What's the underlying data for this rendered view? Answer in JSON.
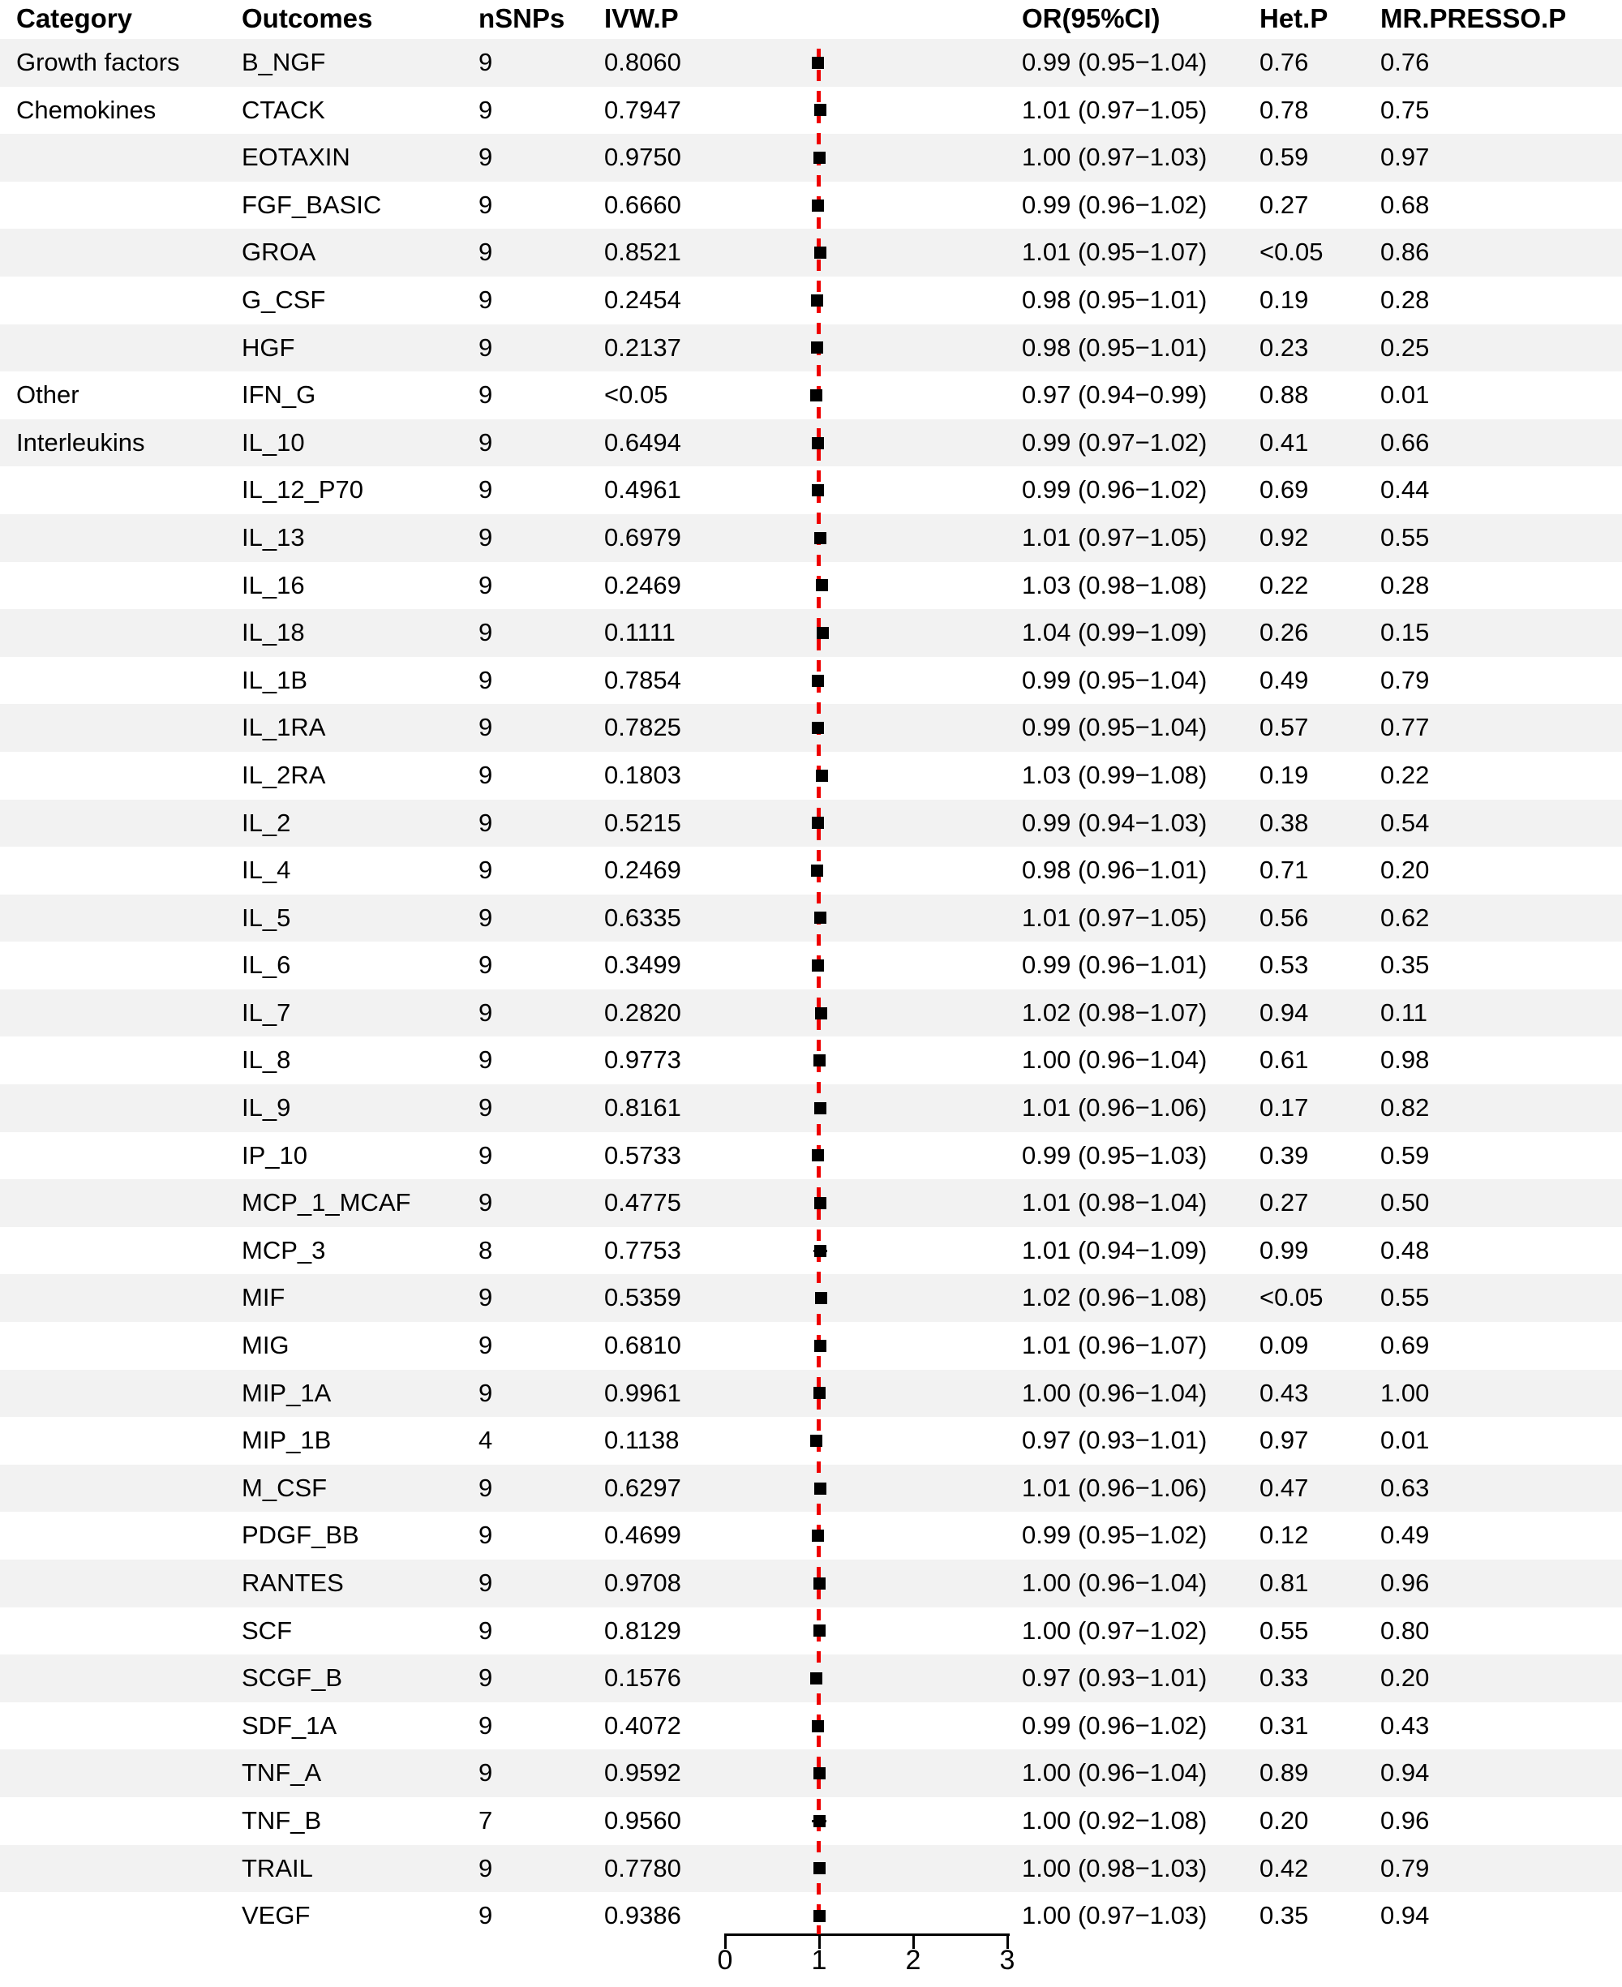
{
  "header": {
    "category": "Category",
    "outcomes": "Outcomes",
    "nsnps": "nSNPs",
    "ivw_p": "IVW.P",
    "or_ci": "OR(95%CI)",
    "het_p": "Het.P",
    "presso_p": "MR.PRESSO.P"
  },
  "axis": {
    "ticks": [
      "0",
      "1",
      "2",
      "3"
    ],
    "min": 0,
    "max": 3,
    "reference_value": 1
  },
  "colors": {
    "stripe": "#f2f2f2",
    "reference_line": "#ee0000",
    "marker": "#000000",
    "text": "#000000"
  },
  "rows": [
    {
      "category": "Growth factors",
      "outcome": "B_NGF",
      "nsnps": "9",
      "ivw_p": "0.8060",
      "or": 0.99,
      "lo": 0.95,
      "hi": 1.04,
      "or_ci": "0.99 (0.95−1.04)",
      "het_p": "0.76",
      "presso_p": "0.76"
    },
    {
      "category": "Chemokines",
      "outcome": "CTACK",
      "nsnps": "9",
      "ivw_p": "0.7947",
      "or": 1.01,
      "lo": 0.97,
      "hi": 1.05,
      "or_ci": "1.01 (0.97−1.05)",
      "het_p": "0.78",
      "presso_p": "0.75"
    },
    {
      "category": "",
      "outcome": "EOTAXIN",
      "nsnps": "9",
      "ivw_p": "0.9750",
      "or": 1.0,
      "lo": 0.97,
      "hi": 1.03,
      "or_ci": "1.00 (0.97−1.03)",
      "het_p": "0.59",
      "presso_p": "0.97"
    },
    {
      "category": "",
      "outcome": "FGF_BASIC",
      "nsnps": "9",
      "ivw_p": "0.6660",
      "or": 0.99,
      "lo": 0.96,
      "hi": 1.02,
      "or_ci": "0.99 (0.96−1.02)",
      "het_p": "0.27",
      "presso_p": "0.68"
    },
    {
      "category": "",
      "outcome": "GROA",
      "nsnps": "9",
      "ivw_p": "0.8521",
      "or": 1.01,
      "lo": 0.95,
      "hi": 1.07,
      "or_ci": "1.01 (0.95−1.07)",
      "het_p": "<0.05",
      "presso_p": "0.86"
    },
    {
      "category": "",
      "outcome": "G_CSF",
      "nsnps": "9",
      "ivw_p": "0.2454",
      "or": 0.98,
      "lo": 0.95,
      "hi": 1.01,
      "or_ci": "0.98 (0.95−1.01)",
      "het_p": "0.19",
      "presso_p": "0.28"
    },
    {
      "category": "",
      "outcome": "HGF",
      "nsnps": "9",
      "ivw_p": "0.2137",
      "or": 0.98,
      "lo": 0.95,
      "hi": 1.01,
      "or_ci": "0.98 (0.95−1.01)",
      "het_p": "0.23",
      "presso_p": "0.25"
    },
    {
      "category": "Other",
      "outcome": "IFN_G",
      "nsnps": "9",
      "ivw_p": "<0.05",
      "or": 0.97,
      "lo": 0.94,
      "hi": 0.99,
      "or_ci": "0.97 (0.94−0.99)",
      "het_p": "0.88",
      "presso_p": "0.01"
    },
    {
      "category": "Interleukins",
      "outcome": "IL_10",
      "nsnps": "9",
      "ivw_p": "0.6494",
      "or": 0.99,
      "lo": 0.97,
      "hi": 1.02,
      "or_ci": "0.99 (0.97−1.02)",
      "het_p": "0.41",
      "presso_p": "0.66"
    },
    {
      "category": "",
      "outcome": "IL_12_P70",
      "nsnps": "9",
      "ivw_p": "0.4961",
      "or": 0.99,
      "lo": 0.96,
      "hi": 1.02,
      "or_ci": "0.99 (0.96−1.02)",
      "het_p": "0.69",
      "presso_p": "0.44"
    },
    {
      "category": "",
      "outcome": "IL_13",
      "nsnps": "9",
      "ivw_p": "0.6979",
      "or": 1.01,
      "lo": 0.97,
      "hi": 1.05,
      "or_ci": "1.01 (0.97−1.05)",
      "het_p": "0.92",
      "presso_p": "0.55"
    },
    {
      "category": "",
      "outcome": "IL_16",
      "nsnps": "9",
      "ivw_p": "0.2469",
      "or": 1.03,
      "lo": 0.98,
      "hi": 1.08,
      "or_ci": "1.03 (0.98−1.08)",
      "het_p": "0.22",
      "presso_p": "0.28"
    },
    {
      "category": "",
      "outcome": "IL_18",
      "nsnps": "9",
      "ivw_p": "0.1111",
      "or": 1.04,
      "lo": 0.99,
      "hi": 1.09,
      "or_ci": "1.04 (0.99−1.09)",
      "het_p": "0.26",
      "presso_p": "0.15"
    },
    {
      "category": "",
      "outcome": "IL_1B",
      "nsnps": "9",
      "ivw_p": "0.7854",
      "or": 0.99,
      "lo": 0.95,
      "hi": 1.04,
      "or_ci": "0.99 (0.95−1.04)",
      "het_p": "0.49",
      "presso_p": "0.79"
    },
    {
      "category": "",
      "outcome": "IL_1RA",
      "nsnps": "9",
      "ivw_p": "0.7825",
      "or": 0.99,
      "lo": 0.95,
      "hi": 1.04,
      "or_ci": "0.99 (0.95−1.04)",
      "het_p": "0.57",
      "presso_p": "0.77"
    },
    {
      "category": "",
      "outcome": "IL_2RA",
      "nsnps": "9",
      "ivw_p": "0.1803",
      "or": 1.03,
      "lo": 0.99,
      "hi": 1.08,
      "or_ci": "1.03 (0.99−1.08)",
      "het_p": "0.19",
      "presso_p": "0.22"
    },
    {
      "category": "",
      "outcome": "IL_2",
      "nsnps": "9",
      "ivw_p": "0.5215",
      "or": 0.99,
      "lo": 0.94,
      "hi": 1.03,
      "or_ci": "0.99 (0.94−1.03)",
      "het_p": "0.38",
      "presso_p": "0.54"
    },
    {
      "category": "",
      "outcome": "IL_4",
      "nsnps": "9",
      "ivw_p": "0.2469",
      "or": 0.98,
      "lo": 0.96,
      "hi": 1.01,
      "or_ci": "0.98 (0.96−1.01)",
      "het_p": "0.71",
      "presso_p": "0.20"
    },
    {
      "category": "",
      "outcome": "IL_5",
      "nsnps": "9",
      "ivw_p": "0.6335",
      "or": 1.01,
      "lo": 0.97,
      "hi": 1.05,
      "or_ci": "1.01 (0.97−1.05)",
      "het_p": "0.56",
      "presso_p": "0.62"
    },
    {
      "category": "",
      "outcome": "IL_6",
      "nsnps": "9",
      "ivw_p": "0.3499",
      "or": 0.99,
      "lo": 0.96,
      "hi": 1.01,
      "or_ci": "0.99 (0.96−1.01)",
      "het_p": "0.53",
      "presso_p": "0.35"
    },
    {
      "category": "",
      "outcome": "IL_7",
      "nsnps": "9",
      "ivw_p": "0.2820",
      "or": 1.02,
      "lo": 0.98,
      "hi": 1.07,
      "or_ci": "1.02 (0.98−1.07)",
      "het_p": "0.94",
      "presso_p": "0.11"
    },
    {
      "category": "",
      "outcome": "IL_8",
      "nsnps": "9",
      "ivw_p": "0.9773",
      "or": 1.0,
      "lo": 0.96,
      "hi": 1.04,
      "or_ci": "1.00 (0.96−1.04)",
      "het_p": "0.61",
      "presso_p": "0.98"
    },
    {
      "category": "",
      "outcome": "IL_9",
      "nsnps": "9",
      "ivw_p": "0.8161",
      "or": 1.01,
      "lo": 0.96,
      "hi": 1.06,
      "or_ci": "1.01 (0.96−1.06)",
      "het_p": "0.17",
      "presso_p": "0.82"
    },
    {
      "category": "",
      "outcome": "IP_10",
      "nsnps": "9",
      "ivw_p": "0.5733",
      "or": 0.99,
      "lo": 0.95,
      "hi": 1.03,
      "or_ci": "0.99 (0.95−1.03)",
      "het_p": "0.39",
      "presso_p": "0.59"
    },
    {
      "category": "",
      "outcome": "MCP_1_MCAF",
      "nsnps": "9",
      "ivw_p": "0.4775",
      "or": 1.01,
      "lo": 0.98,
      "hi": 1.04,
      "or_ci": "1.01 (0.98−1.04)",
      "het_p": "0.27",
      "presso_p": "0.50"
    },
    {
      "category": "",
      "outcome": "MCP_3",
      "nsnps": "8",
      "ivw_p": "0.7753",
      "or": 1.01,
      "lo": 0.94,
      "hi": 1.09,
      "or_ci": "1.01 (0.94−1.09)",
      "het_p": "0.99",
      "presso_p": "0.48"
    },
    {
      "category": "",
      "outcome": "MIF",
      "nsnps": "9",
      "ivw_p": "0.5359",
      "or": 1.02,
      "lo": 0.96,
      "hi": 1.08,
      "or_ci": "1.02 (0.96−1.08)",
      "het_p": "<0.05",
      "presso_p": "0.55"
    },
    {
      "category": "",
      "outcome": "MIG",
      "nsnps": "9",
      "ivw_p": "0.6810",
      "or": 1.01,
      "lo": 0.96,
      "hi": 1.07,
      "or_ci": "1.01 (0.96−1.07)",
      "het_p": "0.09",
      "presso_p": "0.69"
    },
    {
      "category": "",
      "outcome": "MIP_1A",
      "nsnps": "9",
      "ivw_p": "0.9961",
      "or": 1.0,
      "lo": 0.96,
      "hi": 1.04,
      "or_ci": "1.00 (0.96−1.04)",
      "het_p": "0.43",
      "presso_p": "1.00"
    },
    {
      "category": "",
      "outcome": "MIP_1B",
      "nsnps": "4",
      "ivw_p": "0.1138",
      "or": 0.97,
      "lo": 0.93,
      "hi": 1.01,
      "or_ci": "0.97 (0.93−1.01)",
      "het_p": "0.97",
      "presso_p": "0.01"
    },
    {
      "category": "",
      "outcome": "M_CSF",
      "nsnps": "9",
      "ivw_p": "0.6297",
      "or": 1.01,
      "lo": 0.96,
      "hi": 1.06,
      "or_ci": "1.01 (0.96−1.06)",
      "het_p": "0.47",
      "presso_p": "0.63"
    },
    {
      "category": "",
      "outcome": "PDGF_BB",
      "nsnps": "9",
      "ivw_p": "0.4699",
      "or": 0.99,
      "lo": 0.95,
      "hi": 1.02,
      "or_ci": "0.99 (0.95−1.02)",
      "het_p": "0.12",
      "presso_p": "0.49"
    },
    {
      "category": "",
      "outcome": "RANTES",
      "nsnps": "9",
      "ivw_p": "0.9708",
      "or": 1.0,
      "lo": 0.96,
      "hi": 1.04,
      "or_ci": "1.00 (0.96−1.04)",
      "het_p": "0.81",
      "presso_p": "0.96"
    },
    {
      "category": "",
      "outcome": "SCF",
      "nsnps": "9",
      "ivw_p": "0.8129",
      "or": 1.0,
      "lo": 0.97,
      "hi": 1.02,
      "or_ci": "1.00 (0.97−1.02)",
      "het_p": "0.55",
      "presso_p": "0.80"
    },
    {
      "category": "",
      "outcome": "SCGF_B",
      "nsnps": "9",
      "ivw_p": "0.1576",
      "or": 0.97,
      "lo": 0.93,
      "hi": 1.01,
      "or_ci": "0.97 (0.93−1.01)",
      "het_p": "0.33",
      "presso_p": "0.20"
    },
    {
      "category": "",
      "outcome": "SDF_1A",
      "nsnps": "9",
      "ivw_p": "0.4072",
      "or": 0.99,
      "lo": 0.96,
      "hi": 1.02,
      "or_ci": "0.99 (0.96−1.02)",
      "het_p": "0.31",
      "presso_p": "0.43"
    },
    {
      "category": "",
      "outcome": "TNF_A",
      "nsnps": "9",
      "ivw_p": "0.9592",
      "or": 1.0,
      "lo": 0.96,
      "hi": 1.04,
      "or_ci": "1.00 (0.96−1.04)",
      "het_p": "0.89",
      "presso_p": "0.94"
    },
    {
      "category": "",
      "outcome": "TNF_B",
      "nsnps": "7",
      "ivw_p": "0.9560",
      "or": 1.0,
      "lo": 0.92,
      "hi": 1.08,
      "or_ci": "1.00 (0.92−1.08)",
      "het_p": "0.20",
      "presso_p": "0.96"
    },
    {
      "category": "",
      "outcome": "TRAIL",
      "nsnps": "9",
      "ivw_p": "0.7780",
      "or": 1.0,
      "lo": 0.98,
      "hi": 1.03,
      "or_ci": "1.00 (0.98−1.03)",
      "het_p": "0.42",
      "presso_p": "0.79"
    },
    {
      "category": "",
      "outcome": "VEGF",
      "nsnps": "9",
      "ivw_p": "0.9386",
      "or": 1.0,
      "lo": 0.97,
      "hi": 1.03,
      "or_ci": "1.00 (0.97−1.03)",
      "het_p": "0.35",
      "presso_p": "0.94"
    }
  ],
  "chart_data": {
    "type": "scatter",
    "subtype": "forest-plot",
    "title": "",
    "xlabel": "",
    "ylabel": "",
    "xlim": [
      0,
      3
    ],
    "xticks": [
      0,
      1,
      2,
      3
    ],
    "reference_line_x": 1,
    "grid": false,
    "legend_position": "none",
    "categories": [
      "B_NGF",
      "CTACK",
      "EOTAXIN",
      "FGF_BASIC",
      "GROA",
      "G_CSF",
      "HGF",
      "IFN_G",
      "IL_10",
      "IL_12_P70",
      "IL_13",
      "IL_16",
      "IL_18",
      "IL_1B",
      "IL_1RA",
      "IL_2RA",
      "IL_2",
      "IL_4",
      "IL_5",
      "IL_6",
      "IL_7",
      "IL_8",
      "IL_9",
      "IP_10",
      "MCP_1_MCAF",
      "MCP_3",
      "MIF",
      "MIG",
      "MIP_1A",
      "MIP_1B",
      "M_CSF",
      "PDGF_BB",
      "RANTES",
      "SCF",
      "SCGF_B",
      "SDF_1A",
      "TNF_A",
      "TNF_B",
      "TRAIL",
      "VEGF"
    ],
    "series": [
      {
        "name": "OR",
        "values": [
          0.99,
          1.01,
          1.0,
          0.99,
          1.01,
          0.98,
          0.98,
          0.97,
          0.99,
          0.99,
          1.01,
          1.03,
          1.04,
          0.99,
          0.99,
          1.03,
          0.99,
          0.98,
          1.01,
          0.99,
          1.02,
          1.0,
          1.01,
          0.99,
          1.01,
          1.01,
          1.02,
          1.01,
          1.0,
          0.97,
          1.01,
          0.99,
          1.0,
          1.0,
          0.97,
          0.99,
          1.0,
          1.0,
          1.0,
          1.0
        ]
      },
      {
        "name": "CI_low",
        "values": [
          0.95,
          0.97,
          0.97,
          0.96,
          0.95,
          0.95,
          0.95,
          0.94,
          0.97,
          0.96,
          0.97,
          0.98,
          0.99,
          0.95,
          0.95,
          0.99,
          0.94,
          0.96,
          0.97,
          0.96,
          0.98,
          0.96,
          0.96,
          0.95,
          0.98,
          0.94,
          0.96,
          0.96,
          0.96,
          0.93,
          0.96,
          0.95,
          0.96,
          0.97,
          0.93,
          0.96,
          0.96,
          0.92,
          0.98,
          0.97
        ]
      },
      {
        "name": "CI_high",
        "values": [
          1.04,
          1.05,
          1.03,
          1.02,
          1.07,
          1.01,
          1.01,
          0.99,
          1.02,
          1.02,
          1.05,
          1.08,
          1.09,
          1.04,
          1.04,
          1.08,
          1.03,
          1.01,
          1.05,
          1.01,
          1.07,
          1.04,
          1.06,
          1.03,
          1.04,
          1.09,
          1.08,
          1.07,
          1.04,
          1.01,
          1.06,
          1.02,
          1.04,
          1.02,
          1.01,
          1.02,
          1.04,
          1.08,
          1.03,
          1.03
        ]
      }
    ]
  }
}
